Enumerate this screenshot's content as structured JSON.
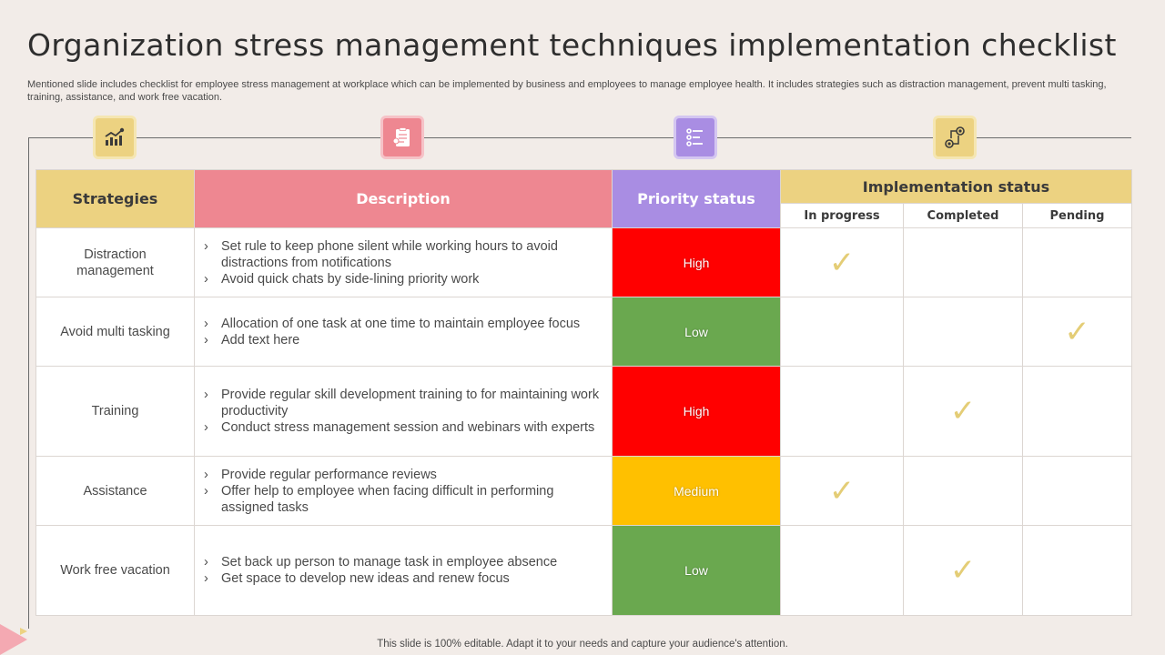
{
  "title": "Organization stress management techniques implementation checklist",
  "subtitle": "Mentioned slide includes checklist for employee stress management at workplace which can be implemented by business and employees to manage employee health. It includes strategies such as distraction management, prevent multi tasking, training, assistance, and work free vacation.",
  "icons": [
    {
      "name": "growth-chart-icon",
      "bg": "#ecd281",
      "border": "#f5e6b2"
    },
    {
      "name": "clipboard-report-icon",
      "bg": "#ee8791",
      "border": "#f6c2c7"
    },
    {
      "name": "checklist-icon",
      "bg": "#a98de3",
      "border": "#d4c6f1"
    },
    {
      "name": "process-flow-icon",
      "bg": "#ecd281",
      "border": "#f5e6b2"
    }
  ],
  "table": {
    "headers": {
      "strategies": "Strategies",
      "description": "Description",
      "priority": "Priority status",
      "implementation": "Implementation status",
      "in_progress": "In progress",
      "completed": "Completed",
      "pending": "Pending"
    },
    "rows": [
      {
        "strategy": "Distraction management",
        "bullets": [
          "Set rule to keep phone silent while working hours to avoid distractions from notifications",
          "Avoid quick chats by side-lining priority work"
        ],
        "priority": "High",
        "priority_color": "#ff0000",
        "status": "in_progress"
      },
      {
        "strategy": "Avoid multi tasking",
        "bullets": [
          "Allocation of one task at one time to maintain employee focus",
          "Add text here"
        ],
        "priority": "Low",
        "priority_color": "#6aa84f",
        "status": "pending"
      },
      {
        "strategy": "Training",
        "bullets": [
          "Provide regular skill development training to for maintaining work productivity",
          "Conduct stress management session and webinars with experts"
        ],
        "priority": "High",
        "priority_color": "#ff0000",
        "status": "completed"
      },
      {
        "strategy": "Assistance",
        "bullets": [
          "Provide regular performance reviews",
          "Offer help to employee when facing difficult in performing assigned tasks"
        ],
        "priority": "Medium",
        "priority_color": "#ffc000",
        "status": "in_progress"
      },
      {
        "strategy": "Work free vacation",
        "bullets": [
          "Set back up person  to manage task in employee absence",
          "Get space to develop new ideas and renew focus"
        ],
        "priority": "Low",
        "priority_color": "#6aa84f",
        "status": "completed"
      }
    ]
  },
  "check_glyph": "✓",
  "footer": "This slide is 100% editable. Adapt it to your needs and capture your audience's attention."
}
